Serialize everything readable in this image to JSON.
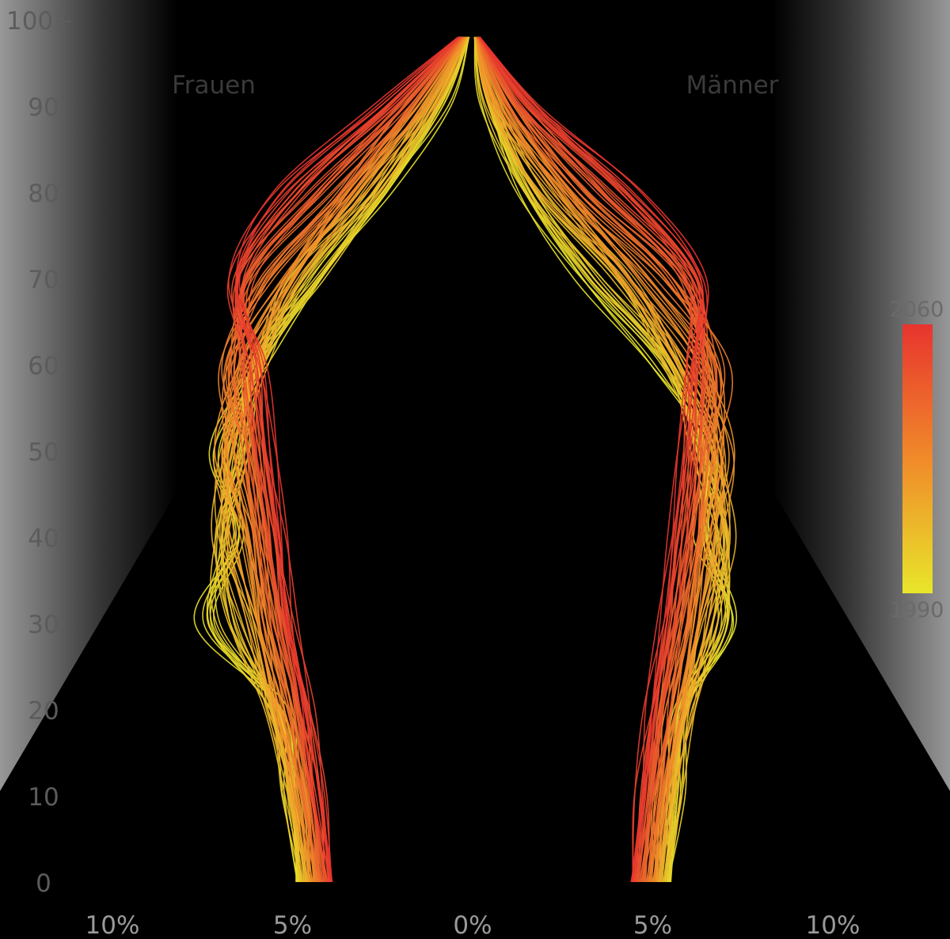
{
  "chart_data": {
    "type": "line",
    "subtype": "population-pyramid",
    "left_label": "Frauen",
    "right_label": "Männer",
    "y_ticks": [
      "0",
      "10",
      "20",
      "30",
      "40",
      "50",
      "60",
      "70",
      "80",
      "90",
      "100+"
    ],
    "x_ticks": [
      "10%",
      "5%",
      "0%",
      "5%",
      "10%"
    ],
    "ylim": [
      0,
      100
    ],
    "xlim": [
      -10,
      10
    ],
    "legend": {
      "position": "right",
      "type": "color-gradient",
      "min_label": "1990",
      "max_label": "2060"
    },
    "colors": {
      "start": "#e8e62a",
      "mid": "#f08a2a",
      "end": "#e8342e"
    },
    "grid": false,
    "series_summary": "one line per year 1990–2060, share of population by 10-year age group and sex",
    "series": [
      {
        "year": 1990,
        "frauen": [
          4.9,
          5.0,
          5.3,
          7.6,
          6.4,
          7.2,
          5.8,
          4.3,
          2.4,
          0.8,
          0.1
        ],
        "maenner": [
          5.5,
          5.6,
          5.8,
          7.2,
          6.2,
          6.6,
          5.0,
          3.0,
          1.4,
          0.4,
          0.05
        ]
      },
      {
        "year": 2000,
        "frauen": [
          4.8,
          5.1,
          5.5,
          6.9,
          7.0,
          6.2,
          6.1,
          4.3,
          2.6,
          1.0,
          0.1
        ],
        "maenner": [
          5.4,
          5.7,
          5.9,
          6.9,
          6.9,
          6.2,
          5.6,
          3.4,
          1.6,
          0.5,
          0.06
        ]
      },
      {
        "year": 2010,
        "frauen": [
          4.6,
          5.0,
          5.6,
          6.2,
          7.0,
          6.8,
          5.8,
          5.1,
          2.8,
          1.2,
          0.15
        ],
        "maenner": [
          5.2,
          5.5,
          6.0,
          6.5,
          7.1,
          6.6,
          5.5,
          4.3,
          1.9,
          0.6,
          0.08
        ]
      },
      {
        "year": 2020,
        "frauen": [
          4.5,
          4.8,
          5.4,
          5.9,
          6.3,
          7.0,
          6.3,
          4.9,
          3.4,
          1.3,
          0.2
        ],
        "maenner": [
          5.1,
          5.3,
          5.8,
          6.2,
          6.6,
          7.1,
          6.1,
          4.3,
          2.5,
          0.7,
          0.1
        ]
      },
      {
        "year": 2030,
        "frauen": [
          4.3,
          4.7,
          5.1,
          5.7,
          6.0,
          6.4,
          6.9,
          5.6,
          3.4,
          1.7,
          0.25
        ],
        "maenner": [
          4.9,
          5.2,
          5.5,
          6.0,
          6.3,
          6.6,
          6.9,
          5.2,
          2.7,
          1.0,
          0.12
        ]
      },
      {
        "year": 2040,
        "frauen": [
          4.2,
          4.5,
          4.9,
          5.4,
          5.8,
          6.1,
          6.4,
          6.2,
          4.1,
          1.8,
          0.3
        ],
        "maenner": [
          4.7,
          5.0,
          5.3,
          5.7,
          6.1,
          6.3,
          6.5,
          5.8,
          3.3,
          1.2,
          0.15
        ]
      },
      {
        "year": 2050,
        "frauen": [
          4.0,
          4.3,
          4.7,
          5.2,
          5.5,
          5.9,
          6.1,
          6.5,
          4.8,
          2.2,
          0.35
        ],
        "maenner": [
          4.5,
          4.8,
          5.1,
          5.5,
          5.8,
          6.1,
          6.2,
          6.1,
          4.0,
          1.5,
          0.18
        ]
      },
      {
        "year": 2060,
        "frauen": [
          3.9,
          4.2,
          4.5,
          5.0,
          5.3,
          5.6,
          5.9,
          6.6,
          5.4,
          2.6,
          0.4
        ],
        "maenner": [
          4.4,
          4.6,
          4.9,
          5.3,
          5.6,
          5.8,
          6.0,
          6.3,
          4.6,
          1.8,
          0.2
        ]
      }
    ]
  }
}
